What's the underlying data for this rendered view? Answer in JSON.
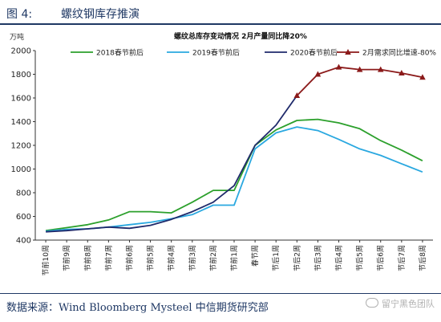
{
  "header": {
    "figure_number": "图 4:",
    "figure_title": "螺纹钢库存推演"
  },
  "footer": {
    "source": "数据来源：Wind Bloomberg Mysteel 中信期货研究部",
    "brand": "留宁黑色团队"
  },
  "chart_data": {
    "type": "line",
    "title": "螺纹总库存变动情况  2月产量同比降20%",
    "ylabel": "万吨",
    "xlabel": "",
    "ylim": [
      400,
      2000
    ],
    "yticks": [
      400,
      600,
      800,
      1000,
      1200,
      1400,
      1600,
      1800,
      2000
    ],
    "grid": false,
    "legend": "top",
    "categories": [
      "节前10周",
      "节前9周",
      "节前8周",
      "节前7周",
      "节前6周",
      "节前5周",
      "节前4周",
      "节前3周",
      "节前2周",
      "节前1周",
      "春节周",
      "节后1周",
      "节后2周",
      "节后3周",
      "节后4周",
      "节后5周",
      "节后6周",
      "节后7周",
      "节后8周"
    ],
    "series": [
      {
        "name": "2018春节前后",
        "color": "#2ca02c",
        "marker": "none",
        "values": [
          480,
          505,
          530,
          570,
          640,
          640,
          630,
          720,
          820,
          820,
          1200,
          1330,
          1410,
          1420,
          1390,
          1340,
          1240,
          1160,
          1070
        ]
      },
      {
        "name": "2019春节前后",
        "color": "#2aa8e0",
        "marker": "none",
        "values": [
          475,
          490,
          495,
          510,
          530,
          550,
          580,
          615,
          695,
          695,
          1170,
          1305,
          1355,
          1325,
          1250,
          1170,
          1115,
          1045,
          975
        ]
      },
      {
        "name": "2020春节前后",
        "color": "#1f2a6b",
        "marker": "none",
        "values": [
          470,
          480,
          495,
          510,
          500,
          525,
          575,
          640,
          720,
          860,
          1200,
          1370,
          1620,
          null,
          null,
          null,
          null,
          null,
          null
        ]
      },
      {
        "name": "2月需求同比增速-80%",
        "color": "#8b1a1a",
        "marker": "triangle",
        "values": [
          null,
          null,
          null,
          null,
          null,
          null,
          null,
          null,
          null,
          null,
          null,
          null,
          1620,
          1800,
          1860,
          1840,
          1840,
          1810,
          1775
        ]
      }
    ]
  }
}
